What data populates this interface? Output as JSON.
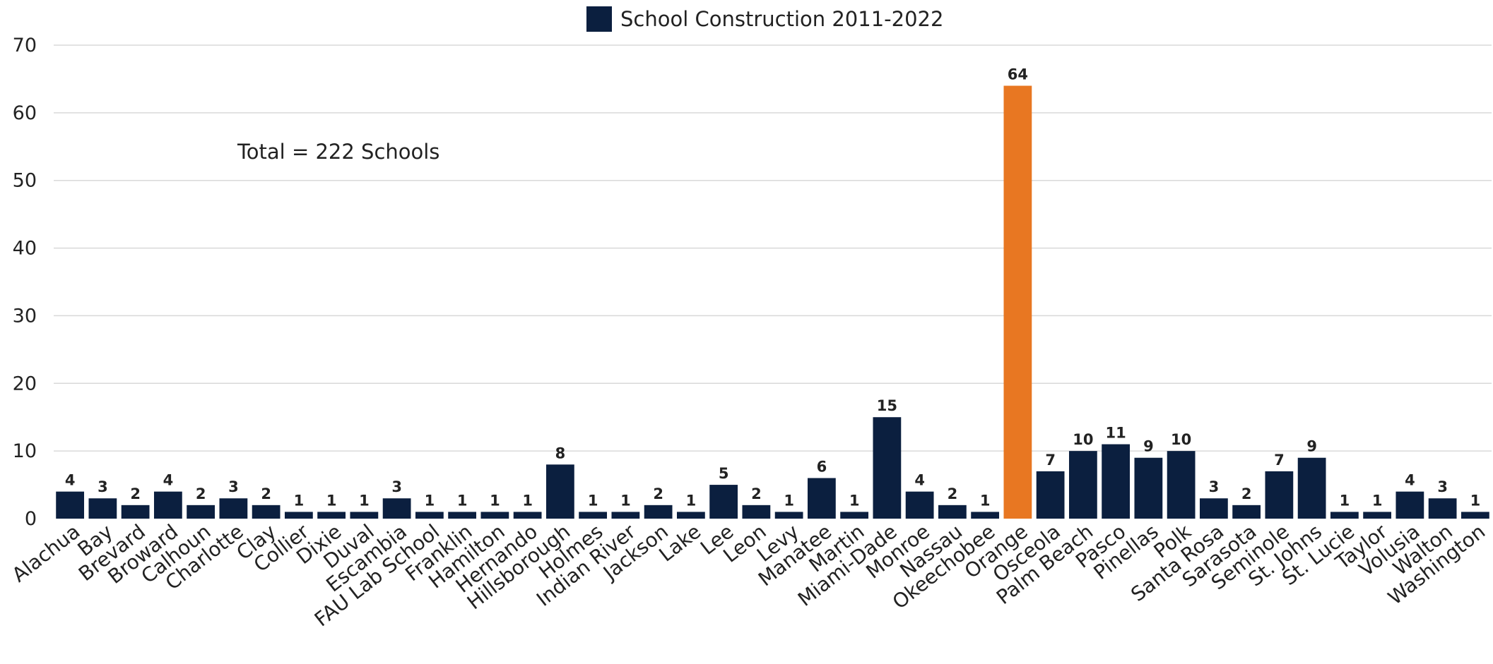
{
  "chart_data": {
    "type": "bar",
    "title": "",
    "xlabel": "",
    "ylabel": "",
    "ylim": [
      0,
      70
    ],
    "yticks": [
      0,
      10,
      20,
      30,
      40,
      50,
      60,
      70
    ],
    "grid": true,
    "legend_position": "top-center",
    "series": [
      {
        "name": "School Construction 2011-2022",
        "color": "#0b1f3f",
        "highlight_color": "#e87722",
        "highlight_category": "Orange",
        "values": [
          4,
          3,
          2,
          4,
          2,
          3,
          2,
          1,
          1,
          1,
          3,
          1,
          1,
          1,
          1,
          8,
          1,
          1,
          2,
          1,
          5,
          2,
          1,
          6,
          1,
          15,
          4,
          2,
          1,
          64,
          7,
          10,
          11,
          9,
          10,
          3,
          2,
          7,
          9,
          1,
          1,
          4,
          3,
          1
        ]
      }
    ],
    "categories": [
      "Alachua",
      "Bay",
      "Brevard",
      "Broward",
      "Calhoun",
      "Charlotte",
      "Clay",
      "Collier",
      "Dixie",
      "Duval",
      "Escambia",
      "FAU Lab School",
      "Franklin",
      "Hamilton",
      "Hernando",
      "Hillsborough",
      "Holmes",
      "Indian River",
      "Jackson",
      "Lake",
      "Lee",
      "Leon",
      "Levy",
      "Manatee",
      "Martin",
      "Miami-Dade",
      "Monroe",
      "Nassau",
      "Okeechobee",
      "Orange",
      "Osceola",
      "Palm Beach",
      "Pasco",
      "Pinellas",
      "Polk",
      "Santa Rosa",
      "Sarasota",
      "Seminole",
      "St. Johns",
      "St. Lucie",
      "Taylor",
      "Volusia",
      "Walton",
      "Washington"
    ],
    "annotations": [
      {
        "text": "Total = 222 Schools"
      }
    ]
  }
}
